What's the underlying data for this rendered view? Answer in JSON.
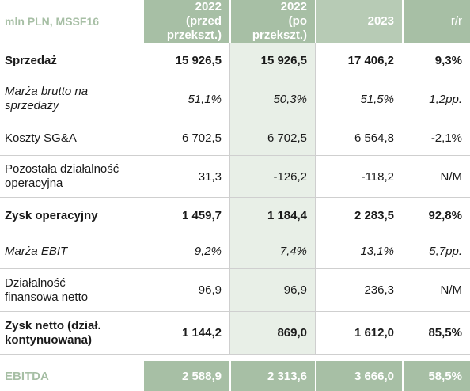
{
  "header": {
    "unit": "mln PLN, MSSF16",
    "col_2022_before": [
      "2022",
      "(przed",
      "przekszt.)"
    ],
    "col_2022_after": [
      "2022",
      "(po",
      "przekszt.)"
    ],
    "col_2023": "2023",
    "col_yoy": "r/r"
  },
  "rows": [
    {
      "label": [
        "Sprzedaż"
      ],
      "v2022_before": "15 926,5",
      "v2022_after": "15 926,5",
      "v2023": "17 406,2",
      "yoy": "9,3%"
    },
    {
      "label": [
        "Marża brutto na",
        "sprzedaży"
      ],
      "v2022_before": "51,1%",
      "v2022_after": "50,3%",
      "v2023": "51,5%",
      "yoy": "1,2pp."
    },
    {
      "label": [
        "Koszty SG&A"
      ],
      "v2022_before": "6 702,5",
      "v2022_after": "6 702,5",
      "v2023": "6 564,8",
      "yoy": "-2,1%"
    },
    {
      "label": [
        "Pozostała działalność",
        "operacyjna"
      ],
      "v2022_before": "31,3",
      "v2022_after": "-126,2",
      "v2023": "-118,2",
      "yoy": "N/M"
    },
    {
      "label": [
        "Zysk operacyjny"
      ],
      "v2022_before": "1 459,7",
      "v2022_after": "1 184,4",
      "v2023": "2 283,5",
      "yoy": "92,8%"
    },
    {
      "label": [
        "Marża EBIT"
      ],
      "v2022_before": "9,2%",
      "v2022_after": "7,4%",
      "v2023": "13,1%",
      "yoy": "5,7pp."
    },
    {
      "label": [
        "Działalność",
        "finansowa netto"
      ],
      "v2022_before": "96,9",
      "v2022_after": "96,9",
      "v2023": "236,3",
      "yoy": "N/M"
    },
    {
      "label": [
        "Zysk netto (dział.",
        "kontynuowana)"
      ],
      "v2022_before": "1 144,2",
      "v2022_after": "869,0",
      "v2023": "1 612,0",
      "yoy": "85,5%"
    }
  ],
  "ebitda": {
    "label": "EBITDA",
    "v2022_before": "2 588,9",
    "v2022_after": "2 313,6",
    "v2023": "3 666,0",
    "yoy": "58,5%"
  }
}
